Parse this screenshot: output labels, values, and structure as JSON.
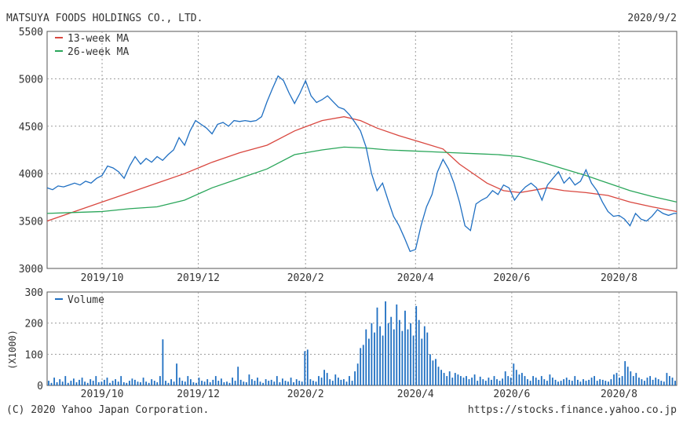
{
  "header": {
    "title": "MATSUYA FOODS HOLDINGS CO., LTD.",
    "date": "2020/9/2"
  },
  "footer": {
    "copyright": "(C) 2020 Yahoo Japan Corporation.",
    "url": "https://stocks.finance.yahoo.co.jp"
  },
  "colors": {
    "price": "#1f6fc2",
    "ma13": "#d9473f",
    "ma26": "#2aa65a",
    "volume": "#1f6fc2",
    "grid": "#9a9a9a",
    "text": "#333333"
  },
  "chart_data": [
    {
      "type": "line",
      "xlim": [
        0,
        229
      ],
      "ylim": [
        3000,
        5500
      ],
      "yticks": [
        3000,
        3500,
        4000,
        4500,
        5000,
        5500
      ],
      "xticks": [
        {
          "x": 20,
          "label": "2019/10"
        },
        {
          "x": 55,
          "label": "2019/12"
        },
        {
          "x": 94,
          "label": "2020/2"
        },
        {
          "x": 134,
          "label": "2020/4"
        },
        {
          "x": 169,
          "label": "2020/6"
        },
        {
          "x": 208,
          "label": "2020/8"
        }
      ],
      "legend": {
        "placement": "top-left",
        "entries": [
          "13-week MA",
          "26-week MA"
        ]
      },
      "series": [
        {
          "name": "",
          "color_key": "price",
          "points": [
            [
              0,
              3850
            ],
            [
              2,
              3830
            ],
            [
              4,
              3870
            ],
            [
              6,
              3860
            ],
            [
              8,
              3880
            ],
            [
              10,
              3900
            ],
            [
              12,
              3880
            ],
            [
              14,
              3920
            ],
            [
              16,
              3900
            ],
            [
              18,
              3950
            ],
            [
              20,
              3980
            ],
            [
              22,
              4080
            ],
            [
              24,
              4060
            ],
            [
              26,
              4020
            ],
            [
              28,
              3950
            ],
            [
              30,
              4080
            ],
            [
              32,
              4180
            ],
            [
              34,
              4100
            ],
            [
              36,
              4160
            ],
            [
              38,
              4120
            ],
            [
              40,
              4180
            ],
            [
              42,
              4140
            ],
            [
              44,
              4200
            ],
            [
              46,
              4250
            ],
            [
              48,
              4380
            ],
            [
              50,
              4300
            ],
            [
              52,
              4450
            ],
            [
              54,
              4560
            ],
            [
              56,
              4520
            ],
            [
              58,
              4480
            ],
            [
              60,
              4420
            ],
            [
              62,
              4520
            ],
            [
              64,
              4540
            ],
            [
              66,
              4500
            ],
            [
              68,
              4560
            ],
            [
              70,
              4550
            ],
            [
              72,
              4560
            ],
            [
              74,
              4550
            ],
            [
              76,
              4560
            ],
            [
              78,
              4600
            ],
            [
              80,
              4760
            ],
            [
              82,
              4900
            ],
            [
              84,
              5030
            ],
            [
              86,
              4980
            ],
            [
              88,
              4850
            ],
            [
              90,
              4740
            ],
            [
              92,
              4850
            ],
            [
              94,
              4980
            ],
            [
              96,
              4820
            ],
            [
              98,
              4750
            ],
            [
              100,
              4780
            ],
            [
              102,
              4820
            ],
            [
              104,
              4760
            ],
            [
              106,
              4700
            ],
            [
              108,
              4680
            ],
            [
              110,
              4620
            ],
            [
              112,
              4540
            ],
            [
              114,
              4450
            ],
            [
              116,
              4280
            ],
            [
              118,
              4000
            ],
            [
              120,
              3820
            ],
            [
              122,
              3900
            ],
            [
              124,
              3720
            ],
            [
              126,
              3550
            ],
            [
              128,
              3450
            ],
            [
              130,
              3320
            ],
            [
              132,
              3180
            ],
            [
              134,
              3200
            ],
            [
              136,
              3450
            ],
            [
              138,
              3650
            ],
            [
              140,
              3780
            ],
            [
              142,
              4020
            ],
            [
              144,
              4150
            ],
            [
              146,
              4050
            ],
            [
              148,
              3900
            ],
            [
              150,
              3700
            ],
            [
              152,
              3450
            ],
            [
              154,
              3400
            ],
            [
              156,
              3680
            ],
            [
              158,
              3720
            ],
            [
              160,
              3750
            ],
            [
              162,
              3820
            ],
            [
              164,
              3780
            ],
            [
              166,
              3880
            ],
            [
              168,
              3850
            ],
            [
              170,
              3720
            ],
            [
              172,
              3800
            ],
            [
              174,
              3860
            ],
            [
              176,
              3900
            ],
            [
              178,
              3850
            ],
            [
              180,
              3720
            ],
            [
              182,
              3880
            ],
            [
              184,
              3950
            ],
            [
              186,
              4020
            ],
            [
              188,
              3900
            ],
            [
              190,
              3960
            ],
            [
              192,
              3880
            ],
            [
              194,
              3920
            ],
            [
              196,
              4040
            ],
            [
              198,
              3900
            ],
            [
              200,
              3820
            ],
            [
              202,
              3700
            ],
            [
              204,
              3600
            ],
            [
              206,
              3550
            ],
            [
              208,
              3560
            ],
            [
              210,
              3520
            ],
            [
              212,
              3450
            ],
            [
              214,
              3580
            ],
            [
              216,
              3520
            ],
            [
              218,
              3500
            ],
            [
              220,
              3550
            ],
            [
              222,
              3620
            ],
            [
              224,
              3580
            ],
            [
              226,
              3560
            ],
            [
              228,
              3580
            ],
            [
              229,
              3580
            ]
          ]
        },
        {
          "name": "13-week MA",
          "color_key": "ma13",
          "points": [
            [
              0,
              3500
            ],
            [
              10,
              3600
            ],
            [
              20,
              3700
            ],
            [
              30,
              3800
            ],
            [
              40,
              3900
            ],
            [
              50,
              4000
            ],
            [
              60,
              4120
            ],
            [
              70,
              4220
            ],
            [
              80,
              4300
            ],
            [
              90,
              4450
            ],
            [
              100,
              4560
            ],
            [
              108,
              4600
            ],
            [
              114,
              4560
            ],
            [
              120,
              4480
            ],
            [
              128,
              4400
            ],
            [
              136,
              4330
            ],
            [
              144,
              4260
            ],
            [
              150,
              4100
            ],
            [
              156,
              3980
            ],
            [
              160,
              3900
            ],
            [
              166,
              3820
            ],
            [
              172,
              3800
            ],
            [
              178,
              3830
            ],
            [
              182,
              3850
            ],
            [
              188,
              3820
            ],
            [
              196,
              3800
            ],
            [
              204,
              3770
            ],
            [
              212,
              3700
            ],
            [
              220,
              3650
            ],
            [
              229,
              3600
            ]
          ]
        },
        {
          "name": "26-week MA",
          "color_key": "ma26",
          "points": [
            [
              0,
              3580
            ],
            [
              10,
              3590
            ],
            [
              20,
              3600
            ],
            [
              30,
              3630
            ],
            [
              40,
              3650
            ],
            [
              50,
              3720
            ],
            [
              60,
              3850
            ],
            [
              70,
              3950
            ],
            [
              80,
              4050
            ],
            [
              90,
              4200
            ],
            [
              100,
              4250
            ],
            [
              108,
              4280
            ],
            [
              116,
              4270
            ],
            [
              124,
              4250
            ],
            [
              132,
              4240
            ],
            [
              140,
              4230
            ],
            [
              148,
              4220
            ],
            [
              156,
              4210
            ],
            [
              164,
              4200
            ],
            [
              172,
              4180
            ],
            [
              180,
              4120
            ],
            [
              188,
              4050
            ],
            [
              196,
              3980
            ],
            [
              204,
              3900
            ],
            [
              212,
              3820
            ],
            [
              220,
              3760
            ],
            [
              229,
              3700
            ]
          ]
        }
      ]
    },
    {
      "type": "bar",
      "xlim": [
        0,
        229
      ],
      "ylim": [
        0,
        300
      ],
      "yticks": [
        0,
        100,
        200,
        300
      ],
      "ylabel": "(X1000)",
      "legend": {
        "placement": "top-left",
        "entries": [
          "Volume"
        ]
      },
      "series": [
        {
          "name": "Volume",
          "values": [
            15,
            8,
            25,
            10,
            20,
            12,
            30,
            8,
            15,
            22,
            10,
            18,
            25,
            12,
            8,
            20,
            15,
            30,
            10,
            12,
            18,
            25,
            8,
            15,
            20,
            12,
            30,
            10,
            8,
            15,
            22,
            18,
            12,
            10,
            25,
            12,
            8,
            20,
            15,
            10,
            30,
            148,
            15,
            8,
            20,
            12,
            70,
            25,
            15,
            12,
            30,
            20,
            10,
            8,
            25,
            15,
            12,
            20,
            10,
            18,
            30,
            15,
            22,
            10,
            12,
            8,
            25,
            15,
            60,
            18,
            12,
            10,
            35,
            20,
            15,
            25,
            12,
            8,
            20,
            15,
            18,
            12,
            30,
            10,
            22,
            15,
            12,
            25,
            10,
            20,
            15,
            12,
            110,
            115,
            20,
            15,
            12,
            30,
            25,
            50,
            40,
            20,
            15,
            35,
            25,
            18,
            20,
            12,
            30,
            15,
            45,
            70,
            120,
            130,
            180,
            150,
            200,
            170,
            250,
            190,
            160,
            270,
            200,
            220,
            180,
            260,
            210,
            175,
            240,
            180,
            200,
            160,
            255,
            210,
            150,
            190,
            170,
            100,
            80,
            85,
            60,
            50,
            40,
            30,
            45,
            25,
            40,
            35,
            30,
            25,
            30,
            20,
            25,
            35,
            15,
            28,
            20,
            15,
            25,
            18,
            30,
            20,
            15,
            22,
            45,
            30,
            25,
            70,
            50,
            35,
            40,
            30,
            20,
            15,
            30,
            25,
            18,
            30,
            20,
            15,
            35,
            25,
            18,
            12,
            15,
            20,
            25,
            18,
            15,
            30,
            18,
            12,
            20,
            15,
            18,
            25,
            30,
            15,
            20,
            18,
            15,
            12,
            20,
            35,
            40,
            25,
            30,
            78,
            60,
            45,
            30,
            40,
            25,
            20,
            15,
            25,
            30,
            18,
            25,
            20,
            15,
            12,
            40,
            30,
            25,
            15
          ]
        }
      ]
    }
  ]
}
